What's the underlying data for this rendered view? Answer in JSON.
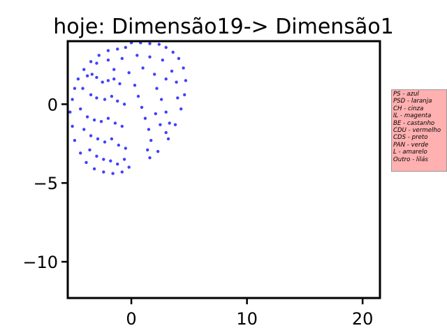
{
  "chart_data": {
    "type": "scatter",
    "title": "hoje: Dimensão19-> Dimensão1",
    "xlabel": "",
    "ylabel": "",
    "xlim": [
      -5.5,
      21.5
    ],
    "ylim": [
      -12.3,
      4.0
    ],
    "xticks": [
      0,
      10,
      20
    ],
    "yticks": [
      0,
      -5,
      -10
    ],
    "xtick_labels": [
      "0",
      "10",
      "20"
    ],
    "ytick_labels": [
      "0",
      "−5",
      "−10"
    ],
    "grid": false,
    "point_color": "#0000ff",
    "series": [
      {
        "points": [
          [
            0.0,
            3.9
          ],
          [
            0.8,
            3.9
          ],
          [
            1.6,
            3.85
          ],
          [
            2.4,
            3.8
          ],
          [
            3.0,
            3.6
          ],
          [
            3.6,
            3.3
          ],
          [
            4.1,
            2.9
          ],
          [
            4.5,
            2.3
          ],
          [
            4.7,
            1.5
          ],
          [
            4.6,
            0.6
          ],
          [
            4.3,
            -0.3
          ],
          [
            3.8,
            -1.3
          ],
          [
            3.2,
            -2.2
          ],
          [
            2.3,
            -3.0
          ],
          [
            1.6,
            -3.4
          ],
          [
            -0.5,
            3.6
          ],
          [
            -1.2,
            3.5
          ],
          [
            -2.0,
            3.4
          ],
          [
            -2.8,
            3.1
          ],
          [
            -3.5,
            2.7
          ],
          [
            -4.1,
            2.2
          ],
          [
            -4.6,
            1.6
          ],
          [
            -4.9,
            1.0
          ],
          [
            -5.1,
            0.3
          ],
          [
            -5.3,
            -0.5
          ],
          [
            -5.1,
            -1.4
          ],
          [
            -4.9,
            -2.3
          ],
          [
            -4.4,
            -3.1
          ],
          [
            -3.9,
            -3.7
          ],
          [
            -3.2,
            -4.1
          ],
          [
            -2.4,
            -4.3
          ],
          [
            -1.6,
            -4.4
          ],
          [
            -0.8,
            -4.3
          ],
          [
            -0.2,
            -4.0
          ],
          [
            -3.8,
            1.8
          ],
          [
            -3.4,
            1.9
          ],
          [
            -3.0,
            1.7
          ],
          [
            -2.5,
            1.4
          ],
          [
            -2.0,
            1.5
          ],
          [
            -1.5,
            1.6
          ],
          [
            -1.0,
            1.3
          ],
          [
            -4.2,
            1.0
          ],
          [
            -3.5,
            0.6
          ],
          [
            -3.0,
            0.4
          ],
          [
            -2.3,
            0.3
          ],
          [
            -1.7,
            0.5
          ],
          [
            -1.2,
            0.2
          ],
          [
            -0.6,
            0.0
          ],
          [
            -4.4,
            -0.3
          ],
          [
            -3.8,
            -0.8
          ],
          [
            -3.2,
            -1.0
          ],
          [
            -2.6,
            -1.1
          ],
          [
            -2.0,
            -0.9
          ],
          [
            -1.4,
            -1.2
          ],
          [
            -0.8,
            -1.4
          ],
          [
            -4.1,
            -1.6
          ],
          [
            -3.5,
            -2.0
          ],
          [
            -2.9,
            -2.2
          ],
          [
            -2.3,
            -2.4
          ],
          [
            -1.7,
            -2.2
          ],
          [
            -1.1,
            -2.6
          ],
          [
            -0.5,
            -2.8
          ],
          [
            -3.6,
            -2.9
          ],
          [
            -3.0,
            -3.3
          ],
          [
            -2.4,
            -3.5
          ],
          [
            -1.8,
            -3.6
          ],
          [
            -1.2,
            -3.8
          ],
          [
            -0.6,
            -3.5
          ],
          [
            0.3,
            1.2
          ],
          [
            0.6,
            0.5
          ],
          [
            0.9,
            -0.2
          ],
          [
            1.2,
            -0.9
          ],
          [
            1.5,
            -1.6
          ],
          [
            1.7,
            -2.3
          ],
          [
            1.4,
            -2.9
          ],
          [
            2.2,
            1.0
          ],
          [
            2.6,
            0.3
          ],
          [
            3.0,
            -0.5
          ],
          [
            3.3,
            -1.2
          ],
          [
            3.0,
            -1.8
          ],
          [
            2.5,
            -1.3
          ],
          [
            2.1,
            -0.6
          ],
          [
            -3.0,
            2.6
          ],
          [
            -2.0,
            2.8
          ],
          [
            -0.8,
            2.9
          ],
          [
            0.5,
            3.1
          ],
          [
            1.6,
            3.0
          ],
          [
            2.7,
            2.8
          ],
          [
            3.5,
            2.1
          ],
          [
            3.9,
            1.4
          ],
          [
            4.0,
            0.4
          ],
          [
            -1.5,
            2.2
          ],
          [
            -0.2,
            2.0
          ],
          [
            1.0,
            2.3
          ],
          [
            2.0,
            1.9
          ],
          [
            3.0,
            1.6
          ]
        ]
      }
    ],
    "legend": {
      "placement": "right",
      "background": "#ffb0b0",
      "entries": [
        "PS - azul",
        "PSD - laranja",
        "CH - cinza",
        "IL - magenta",
        "BE - castanho",
        "CDU - vermelho",
        "CDS - preto",
        "PAN - verde",
        "L - amarelo",
        "Outro - lilás"
      ]
    }
  }
}
